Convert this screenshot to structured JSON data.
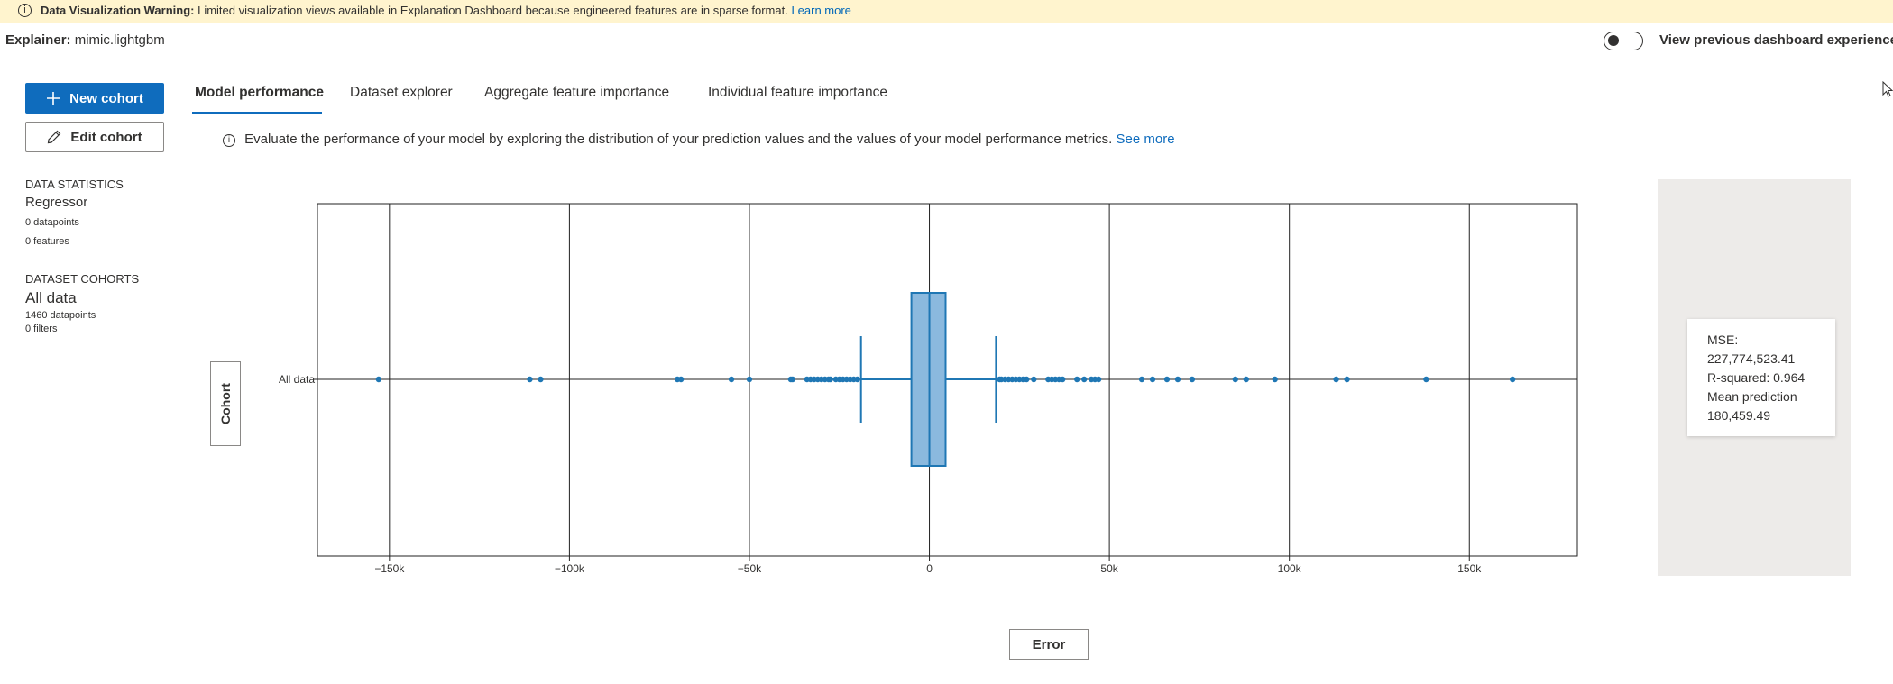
{
  "warning": {
    "title": "Data Visualization Warning:",
    "message": "Limited visualization views available in Explanation Dashboard because engineered features are in sparse format.",
    "link": "Learn more"
  },
  "explainer": {
    "label": "Explainer:",
    "value": "mimic.lightgbm"
  },
  "toggle": {
    "label": "View previous dashboard experience",
    "on": false
  },
  "buttons": {
    "new_cohort": "New cohort",
    "edit_cohort": "Edit cohort",
    "cohort_axis": "Cohort",
    "error_axis": "Error"
  },
  "tabs": [
    {
      "label": "Model performance",
      "active": true
    },
    {
      "label": "Dataset explorer",
      "active": false
    },
    {
      "label": "Aggregate feature importance",
      "active": false
    },
    {
      "label": "Individual feature importance",
      "active": false
    }
  ],
  "info": {
    "text": "Evaluate the performance of your model by exploring the distribution of your prediction values and the values of your model performance metrics.",
    "link": "See more"
  },
  "stats": {
    "heading": "DATA STATISTICS",
    "model_type": "Regressor",
    "datapoints": "0 datapoints",
    "features": "0 features"
  },
  "cohorts": {
    "heading": "DATASET COHORTS",
    "name": "All data",
    "datapoints": "1460 datapoints",
    "filters": "0 filters"
  },
  "metrics": {
    "mse_label": "MSE:",
    "mse_value": "227,774,523.41",
    "r2": "R-squared: 0.964",
    "mean_label": "Mean prediction",
    "mean_value": "180,459.49"
  },
  "colors": {
    "accent": "#0f6cbd",
    "box_fill": "#8bb9de",
    "box_stroke": "#1f77b4",
    "panel": "#edebe9",
    "banner": "#fff4ce"
  },
  "chart_data": {
    "type": "box",
    "orientation": "horizontal",
    "categories": [
      "All data"
    ],
    "xlim": [
      -170000,
      180000
    ],
    "xticks": [
      -150000,
      -100000,
      -50000,
      0,
      50000,
      100000,
      150000
    ],
    "xtick_labels": [
      "−150k",
      "−100k",
      "−50k",
      "0",
      "50k",
      "100k",
      "150k"
    ],
    "box": {
      "q1": -5000,
      "median": 0,
      "q3": 4500,
      "whisker_low": -19000,
      "whisker_high": 18500
    },
    "outliers": [
      -153000,
      -111000,
      -108000,
      -70000,
      -69000,
      -55000,
      -50000,
      -38500,
      -38000,
      -34000,
      -33000,
      -32000,
      -31000,
      -30000,
      -29000,
      -28000,
      -27500,
      -26000,
      -25000,
      -24000,
      -23000,
      -22000,
      -21000,
      -20000,
      19500,
      20000,
      21000,
      22000,
      23000,
      24000,
      25000,
      26000,
      27000,
      29000,
      33000,
      34000,
      35000,
      36000,
      37000,
      41000,
      43000,
      45000,
      46000,
      47000,
      59000,
      62000,
      66000,
      69000,
      73000,
      85000,
      88000,
      96000,
      113000,
      116000,
      138000,
      162000
    ],
    "grid": true
  }
}
